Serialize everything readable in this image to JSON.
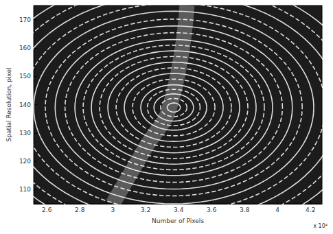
{
  "chart_data": {
    "type": "streamlines",
    "x_label": "Number of Pixels",
    "y_label": "Spatial Resolution, pixel",
    "x_multiplier": "x 10⁴",
    "xlim": [
      2.52,
      4.27
    ],
    "ylim": [
      105,
      175
    ],
    "xticks": [
      2.6,
      2.8,
      {
        "value": 3,
        "label": "3"
      },
      3.2,
      3.4,
      3.6,
      3.8,
      {
        "value": 4,
        "label": "4"
      },
      4.2
    ],
    "yticks": [
      110,
      120,
      130,
      140,
      150,
      160,
      170
    ],
    "color": "#ffffff",
    "center": [
      3.37,
      139
    ],
    "radii_x": [
      0.04,
      0.08,
      0.12,
      0.16,
      0.2,
      0.25,
      0.3,
      0.35,
      0.4,
      0.45,
      0.5,
      0.55,
      0.6,
      0.66,
      0.72,
      0.78,
      0.85,
      0.92,
      1.0,
      1.08,
      1.16
    ],
    "radii_y": [
      1.6,
      3.2,
      4.8,
      6.4,
      8,
      10,
      12,
      14,
      16,
      18,
      20,
      22,
      24,
      26.4,
      28.8,
      31.2,
      34,
      36.8,
      40,
      43.2,
      46.4
    ],
    "band": {
      "x": [
        3.0,
        3.2,
        3.35,
        3.45
      ],
      "y": [
        105,
        125,
        140,
        175
      ]
    },
    "grid": false
  }
}
